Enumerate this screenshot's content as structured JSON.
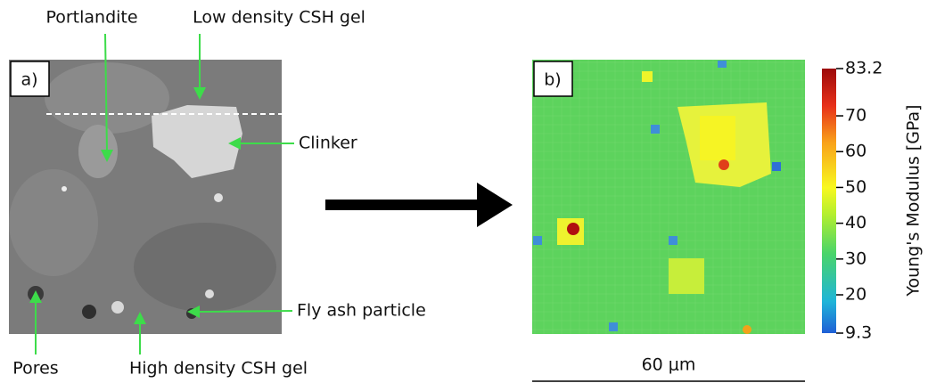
{
  "panel_a": {
    "label": "a)",
    "annotations": [
      "Portlandite",
      "Low density CSH gel",
      "Clinker",
      "Fly ash particle",
      "Pores",
      "High density CSH gel"
    ]
  },
  "panel_b": {
    "label": "b)",
    "colorbar": {
      "title": "Young's Modulus [GPa]",
      "lim": [
        9.3,
        83.2
      ],
      "ticks": [
        9.3,
        20,
        30,
        40,
        50,
        60,
        70,
        83.2
      ]
    },
    "scale_bar": "60 μm"
  }
}
